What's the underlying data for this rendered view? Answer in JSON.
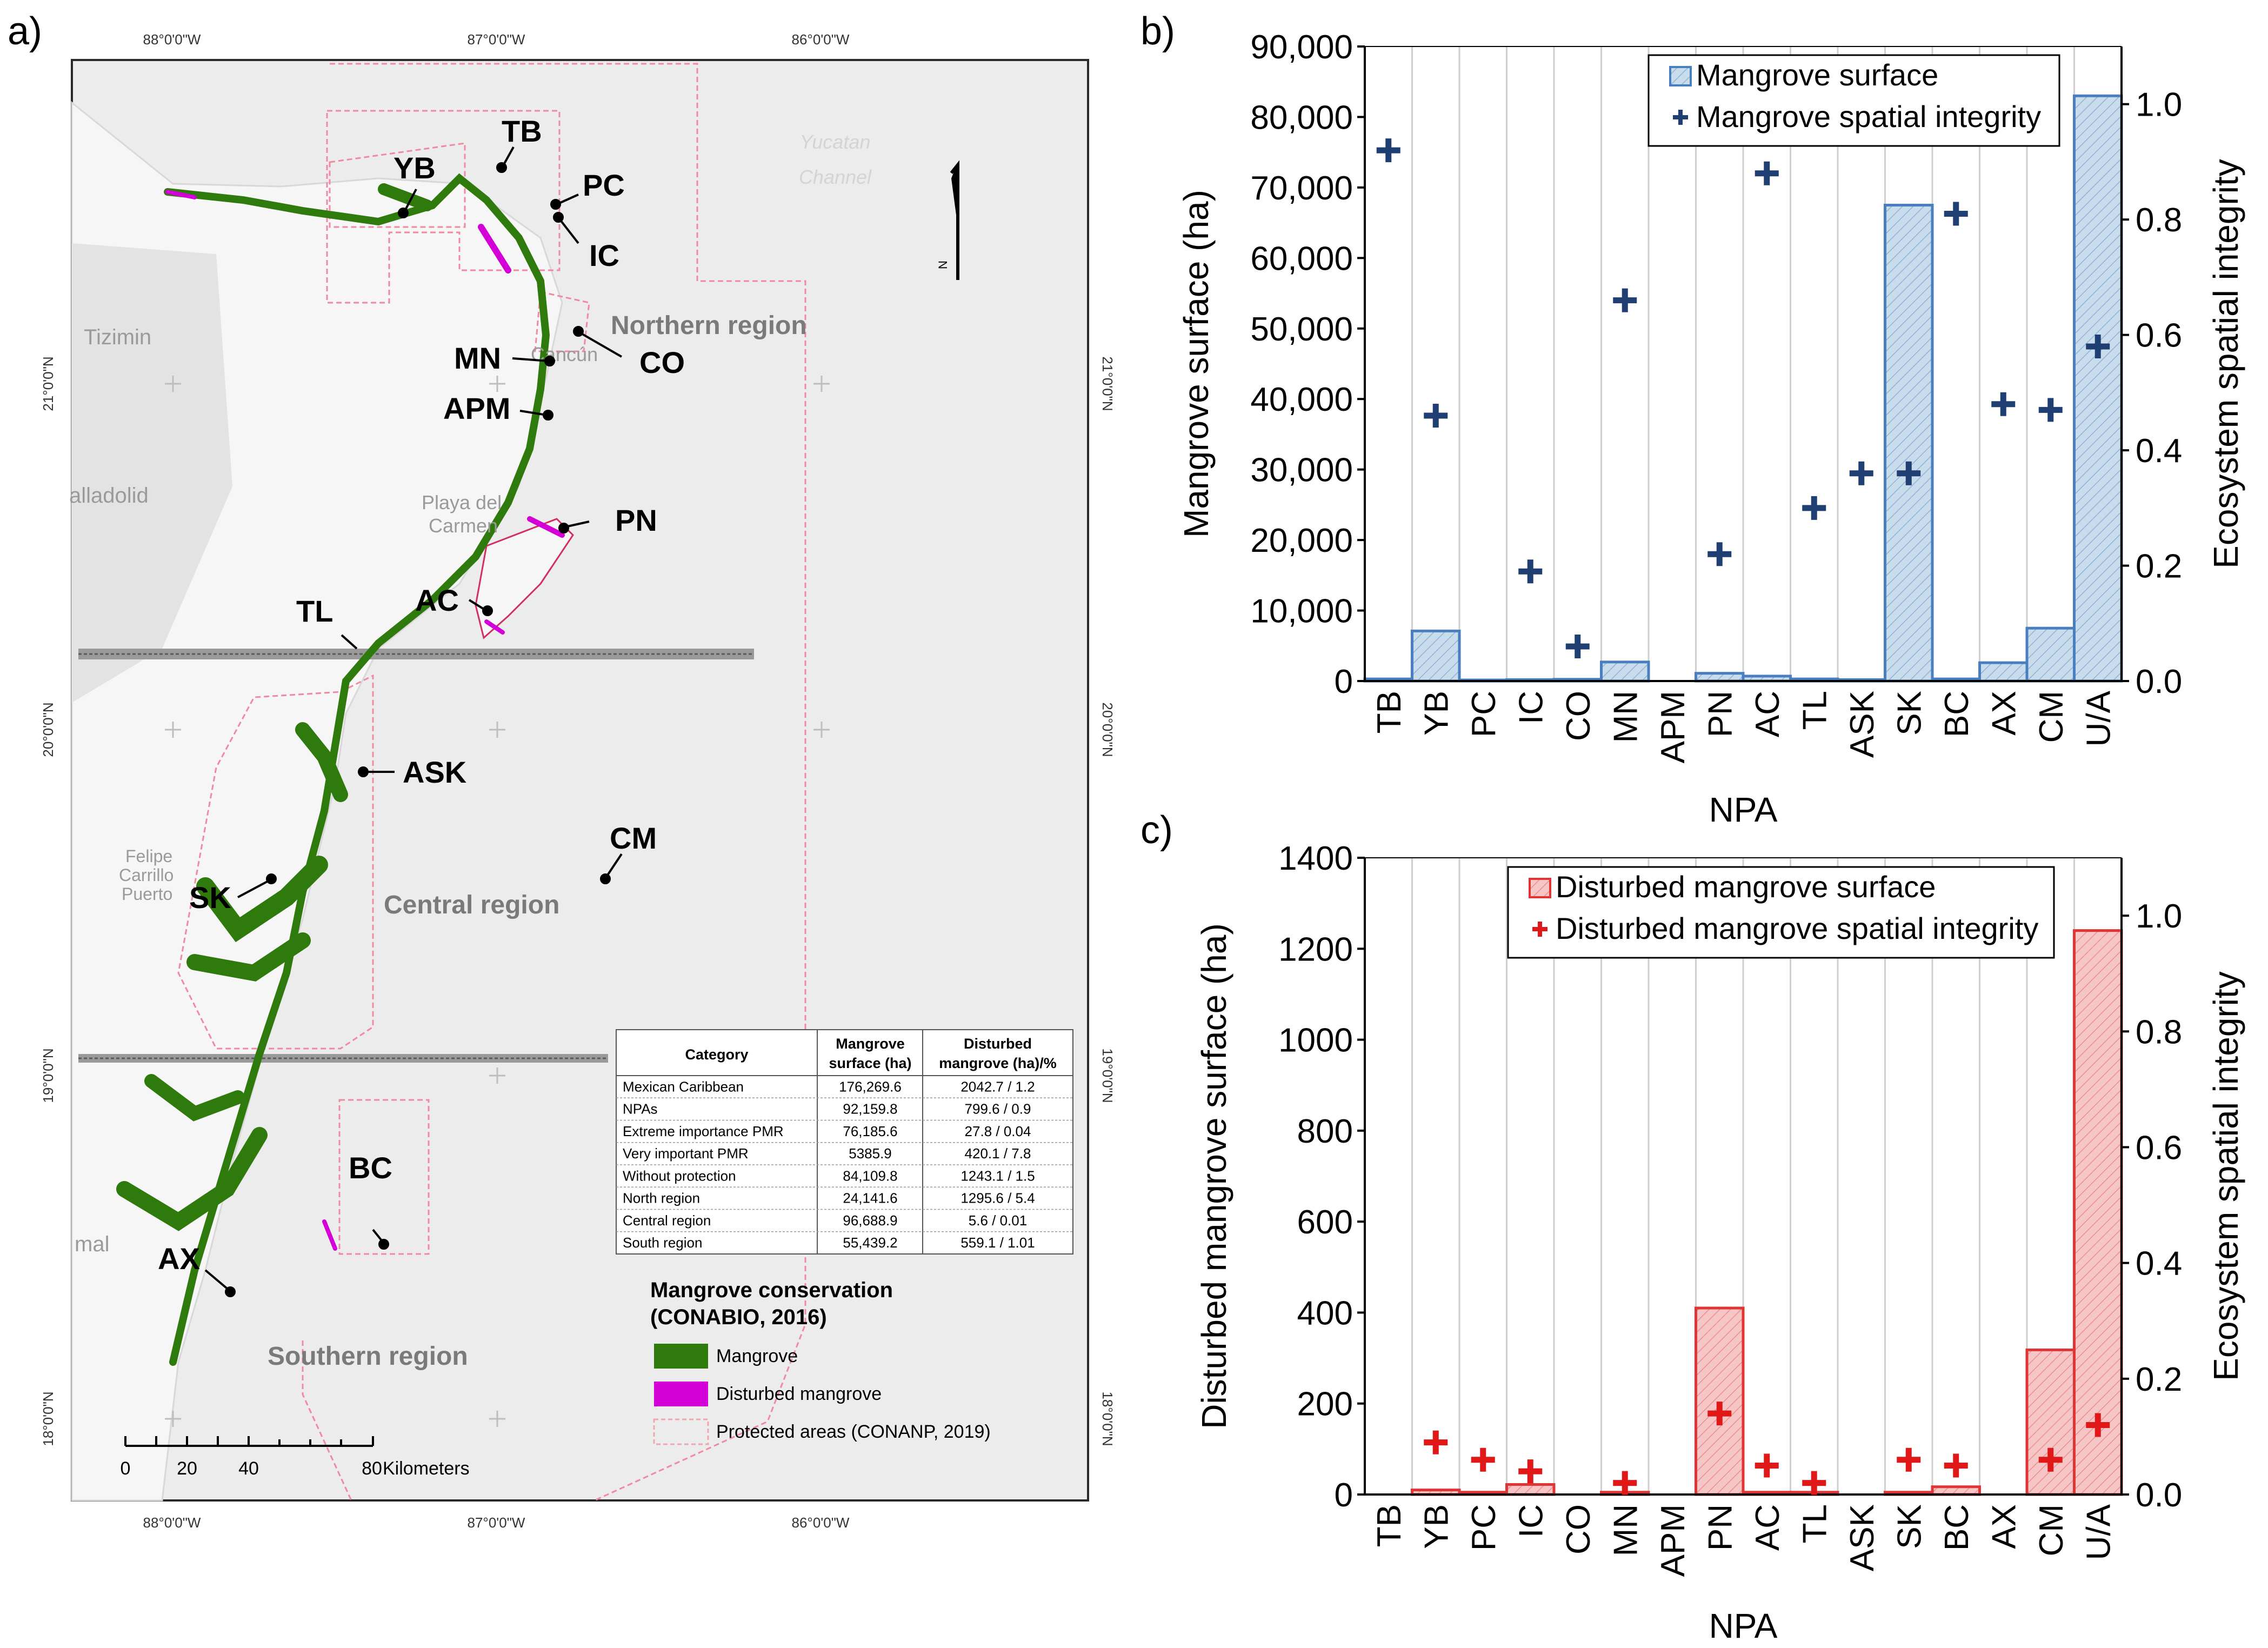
{
  "panels": {
    "a": "a)",
    "b": "b)",
    "c": "c)"
  },
  "map": {
    "lon_labels": [
      "88°0'0\"W",
      "87°0'0\"W",
      "86°0'0\"W"
    ],
    "lat_labels": [
      "21°0'0\"N",
      "20°0'0\"N",
      "19°0'0\"N",
      "18°0'0\"N"
    ],
    "sea_labels": [
      "Yucatan",
      "Channel"
    ],
    "town_labels": [
      "Tizimin",
      "alladolid",
      "Cancún",
      "Playa del",
      "Carmen",
      "Felipe",
      "Carrillo",
      "Puerto",
      "mal"
    ],
    "npa_labels": [
      "TB",
      "YB",
      "PC",
      "IC",
      "CO",
      "MN",
      "APM",
      "PN",
      "AC",
      "TL",
      "ASK",
      "SK",
      "CM",
      "BC",
      "AX"
    ],
    "regions": {
      "north": "Northern region",
      "central": "Central region",
      "south": "Southern region"
    },
    "north_arrow": "N",
    "scale_bar": {
      "ticks": [
        "0",
        "20",
        "40",
        "80"
      ],
      "unit": "Kilometers"
    },
    "table": {
      "headers": [
        "Category",
        "Mangrove surface (ha)",
        "Disturbed mangrove (ha)/%"
      ],
      "header_lines": [
        [
          "Category"
        ],
        [
          "Mangrove",
          "surface (ha)"
        ],
        [
          "Disturbed",
          "mangrove (ha)/%"
        ]
      ],
      "rows": [
        [
          "Mexican Caribbean",
          "176,269.6",
          "2042.7 / 1.2"
        ],
        [
          "NPAs",
          "92,159.8",
          "799.6 / 0.9"
        ],
        [
          "Extreme importance PMR",
          "76,185.6",
          "27.8 / 0.04"
        ],
        [
          "Very important PMR",
          "5385.9",
          "420.1 / 7.8"
        ],
        [
          "Without protection",
          "84,109.8",
          "1243.1 / 1.5"
        ],
        [
          "North region",
          "24,141.6",
          "1295.6 / 5.4"
        ],
        [
          "Central region",
          "96,688.9",
          "5.6 / 0.01"
        ],
        [
          "South region",
          "55,439.2",
          "559.1 / 1.01"
        ]
      ]
    },
    "legend": {
      "title_line1": "Mangrove conservation",
      "title_line2": "(CONABIO, 2016)",
      "items": [
        {
          "label": "Mangrove",
          "color": "#2f7a0c"
        },
        {
          "label": "Disturbed mangrove",
          "color": "#d400d8"
        },
        {
          "label": "Protected areas (CONANP, 2019)",
          "color": "#f0a6b0"
        }
      ]
    }
  },
  "chart_data": [
    {
      "id": "b",
      "type": "bar",
      "categories": [
        "TB",
        "YB",
        "PC",
        "IC",
        "CO",
        "MN",
        "APM",
        "PN",
        "AC",
        "TL",
        "ASK",
        "SK",
        "BC",
        "AX",
        "CM",
        "U/A"
      ],
      "series": [
        {
          "name": "Mangrove surface",
          "axis": "left",
          "type": "bar",
          "values": [
            300,
            7100,
            150,
            200,
            250,
            2700,
            0,
            1100,
            700,
            300,
            200,
            67500,
            300,
            2600,
            7500,
            83000
          ]
        },
        {
          "name": "Mangrove spatial integrity",
          "axis": "right",
          "type": "scatter",
          "marker": "plus",
          "values": [
            0.92,
            0.46,
            null,
            0.19,
            0.06,
            0.66,
            null,
            0.22,
            0.88,
            0.3,
            0.36,
            0.36,
            0.81,
            0.48,
            0.47,
            0.58
          ]
        }
      ],
      "xlabel": "NPA",
      "ylabel": "Mangrove surface (ha)",
      "y2label": "Ecosystem spatial integrity",
      "ylim": [
        0,
        90000
      ],
      "yticks": [
        0,
        10000,
        20000,
        30000,
        40000,
        50000,
        60000,
        70000,
        80000,
        90000
      ],
      "ytick_labels": [
        "0",
        "10,000",
        "20,000",
        "30,000",
        "40,000",
        "50,000",
        "60,000",
        "70,000",
        "80,000",
        "90,000"
      ],
      "y2lim": [
        0,
        1.1
      ],
      "y2ticks": [
        0,
        0.2,
        0.4,
        0.6,
        0.8,
        1
      ],
      "y2tick_labels": [
        "0.0",
        "0.2",
        "0.4",
        "0.6",
        "0.8",
        "1.0"
      ],
      "colors": {
        "bar_fill": "#c9dcec",
        "bar_stroke": "#4a7fbf",
        "marker": "#1f3f73"
      },
      "grid": "vertical",
      "legend": "top-right"
    },
    {
      "id": "c",
      "type": "bar",
      "categories": [
        "TB",
        "YB",
        "PC",
        "IC",
        "CO",
        "MN",
        "APM",
        "PN",
        "AC",
        "TL",
        "ASK",
        "SK",
        "BC",
        "AX",
        "CM",
        "U/A"
      ],
      "series": [
        {
          "name": "Disturbed mangrove surface",
          "axis": "left",
          "type": "bar",
          "values": [
            0,
            10,
            5,
            22,
            0,
            5,
            0,
            410,
            5,
            5,
            0,
            5,
            17,
            0,
            318,
            1240
          ]
        },
        {
          "name": "Disturbed mangrove spatial integrity",
          "axis": "right",
          "type": "scatter",
          "marker": "plus",
          "values": [
            null,
            0.09,
            0.06,
            0.04,
            null,
            0.02,
            null,
            0.14,
            0.05,
            0.02,
            null,
            0.06,
            0.05,
            null,
            0.06,
            0.12
          ]
        }
      ],
      "xlabel": "NPA",
      "ylabel": "Disturbed mangrove surface (ha)",
      "y2label": "Ecosystem spatial integrity",
      "ylim": [
        0,
        1400
      ],
      "yticks": [
        0,
        200,
        400,
        600,
        800,
        1000,
        1200,
        1400
      ],
      "ytick_labels": [
        "0",
        "200",
        "400",
        "600",
        "800",
        "1000",
        "1200",
        "1400"
      ],
      "y2lim": [
        0,
        1.1
      ],
      "y2ticks": [
        0,
        0.2,
        0.4,
        0.6,
        0.8,
        1
      ],
      "y2tick_labels": [
        "0.0",
        "0.2",
        "0.4",
        "0.6",
        "0.8",
        "1.0"
      ],
      "colors": {
        "bar_fill": "#f4bcbc",
        "bar_stroke": "#e03535",
        "marker": "#e01818"
      },
      "grid": "vertical",
      "legend": "top-right"
    }
  ]
}
